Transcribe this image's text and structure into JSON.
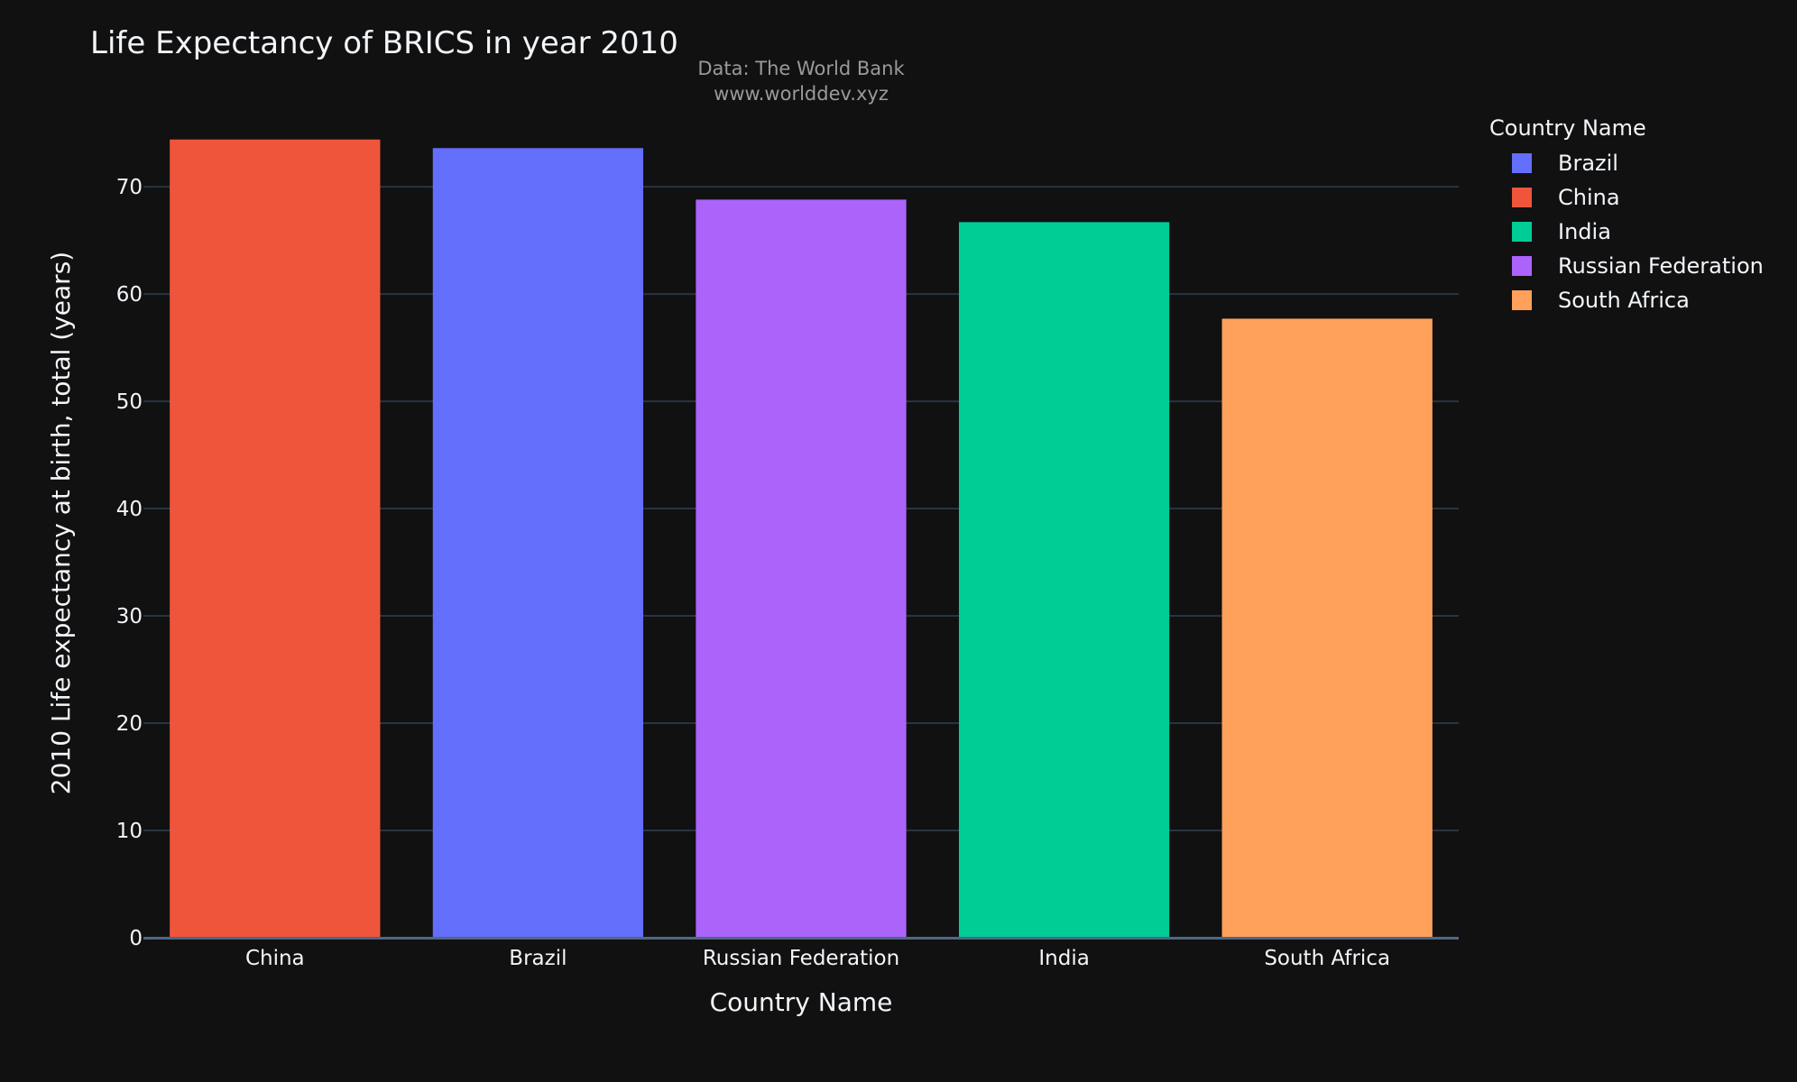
{
  "chart_data": {
    "type": "bar",
    "title": "Life Expectancy of BRICS in year 2010",
    "subtitle_lines": [
      "Data: The World Bank",
      "www.worlddev.xyz"
    ],
    "xlabel": "Country Name",
    "ylabel": "2010 Life expectancy at birth, total (years)",
    "categories": [
      "China",
      "Brazil",
      "Russian Federation",
      "India",
      "South Africa"
    ],
    "values": [
      74.4,
      73.6,
      68.8,
      66.7,
      57.7
    ],
    "colors": [
      "#ef553b",
      "#636efa",
      "#ab63fa",
      "#00cc96",
      "#ffa15a"
    ],
    "ylim": [
      0,
      79
    ],
    "yticks": [
      0,
      10,
      20,
      30,
      40,
      50,
      60,
      70
    ],
    "grid": true,
    "legend": {
      "title": "Country Name",
      "placement": "top-right",
      "entries": [
        {
          "name": "Brazil",
          "color": "#636efa"
        },
        {
          "name": "China",
          "color": "#ef553b"
        },
        {
          "name": "India",
          "color": "#00cc96"
        },
        {
          "name": "Russian Federation",
          "color": "#ab63fa"
        },
        {
          "name": "South Africa",
          "color": "#ffa15a"
        }
      ]
    }
  }
}
